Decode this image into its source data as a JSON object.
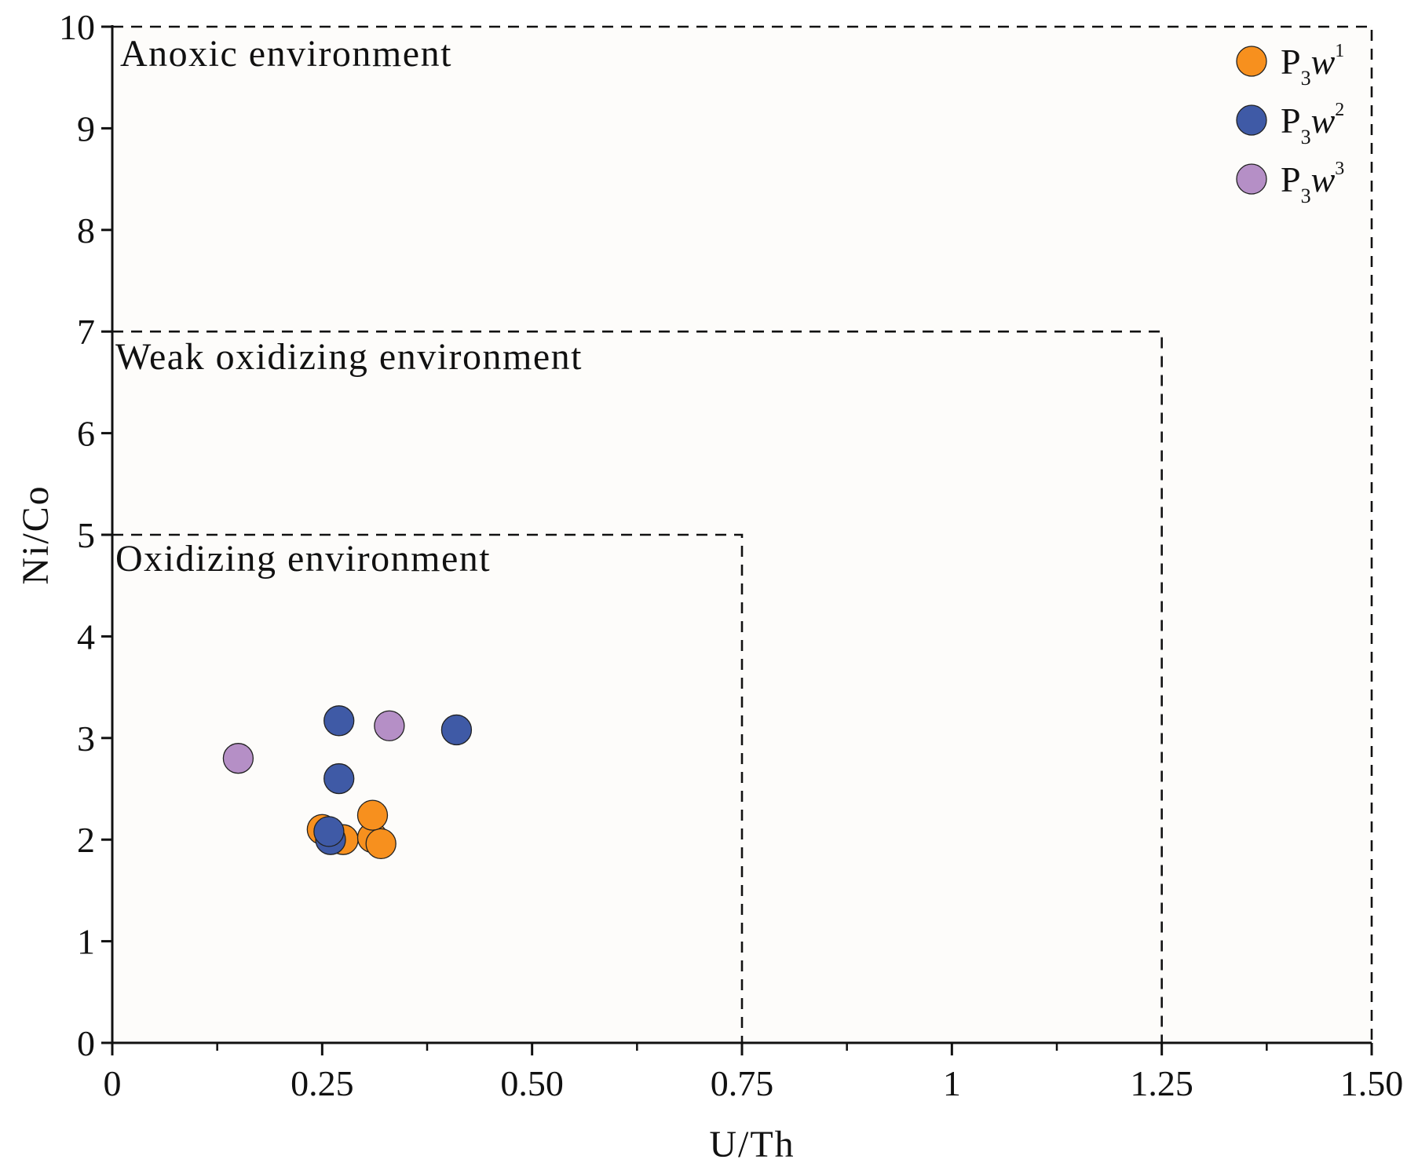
{
  "chart_data": {
    "type": "scatter",
    "title": "",
    "xlabel": "U/Th",
    "ylabel": "Ni/Co",
    "xlim": [
      0,
      1.5
    ],
    "ylim": [
      0,
      10
    ],
    "x_ticks": [
      {
        "value": 0,
        "label": "0"
      },
      {
        "value": 0.25,
        "label": "0.25"
      },
      {
        "value": 0.5,
        "label": "0.50"
      },
      {
        "value": 0.75,
        "label": "0.75"
      },
      {
        "value": 1.0,
        "label": "1"
      },
      {
        "value": 1.25,
        "label": "1.25"
      },
      {
        "value": 1.5,
        "label": "1.50"
      }
    ],
    "x_minor_ticks": [
      0.125,
      0.375,
      0.625,
      0.875,
      1.125,
      1.375
    ],
    "y_ticks": [
      {
        "value": 0,
        "label": "0"
      },
      {
        "value": 1,
        "label": "1"
      },
      {
        "value": 2,
        "label": "2"
      },
      {
        "value": 3,
        "label": "3"
      },
      {
        "value": 4,
        "label": "4"
      },
      {
        "value": 5,
        "label": "5"
      },
      {
        "value": 6,
        "label": "6"
      },
      {
        "value": 7,
        "label": "7"
      },
      {
        "value": 8,
        "label": "8"
      },
      {
        "value": 9,
        "label": "9"
      },
      {
        "value": 10,
        "label": "10"
      }
    ],
    "grid": false,
    "legend_position": "top-right",
    "zones": [
      {
        "label": "Anoxic environment",
        "x_max": 1.5,
        "y_max": 10
      },
      {
        "label": "Weak oxidizing environment",
        "x_max": 1.25,
        "y_max": 7
      },
      {
        "label": "Oxidizing environment",
        "x_max": 0.75,
        "y_max": 5
      }
    ],
    "series": [
      {
        "name": "P3w1",
        "label_base": "P",
        "label_sub": "3",
        "label_italic": "w",
        "label_sup": "1",
        "color": "#F7901E",
        "points": [
          {
            "x": 0.275,
            "y": 2.0
          },
          {
            "x": 0.31,
            "y": 2.02
          },
          {
            "x": 0.32,
            "y": 1.96
          },
          {
            "x": 0.31,
            "y": 2.24
          },
          {
            "x": 0.25,
            "y": 2.1
          }
        ]
      },
      {
        "name": "P3w2",
        "label_base": "P",
        "label_sub": "3",
        "label_italic": "w",
        "label_sup": "2",
        "color": "#3F5AA6",
        "points": [
          {
            "x": 0.27,
            "y": 3.17
          },
          {
            "x": 0.41,
            "y": 3.08
          },
          {
            "x": 0.27,
            "y": 2.6
          },
          {
            "x": 0.26,
            "y": 2.0
          },
          {
            "x": 0.258,
            "y": 2.08
          }
        ]
      },
      {
        "name": "P3w3",
        "label_base": "P",
        "label_sub": "3",
        "label_italic": "w",
        "label_sup": "3",
        "color": "#B58FC6",
        "points": [
          {
            "x": 0.15,
            "y": 2.8
          },
          {
            "x": 0.33,
            "y": 3.12
          }
        ]
      }
    ]
  }
}
